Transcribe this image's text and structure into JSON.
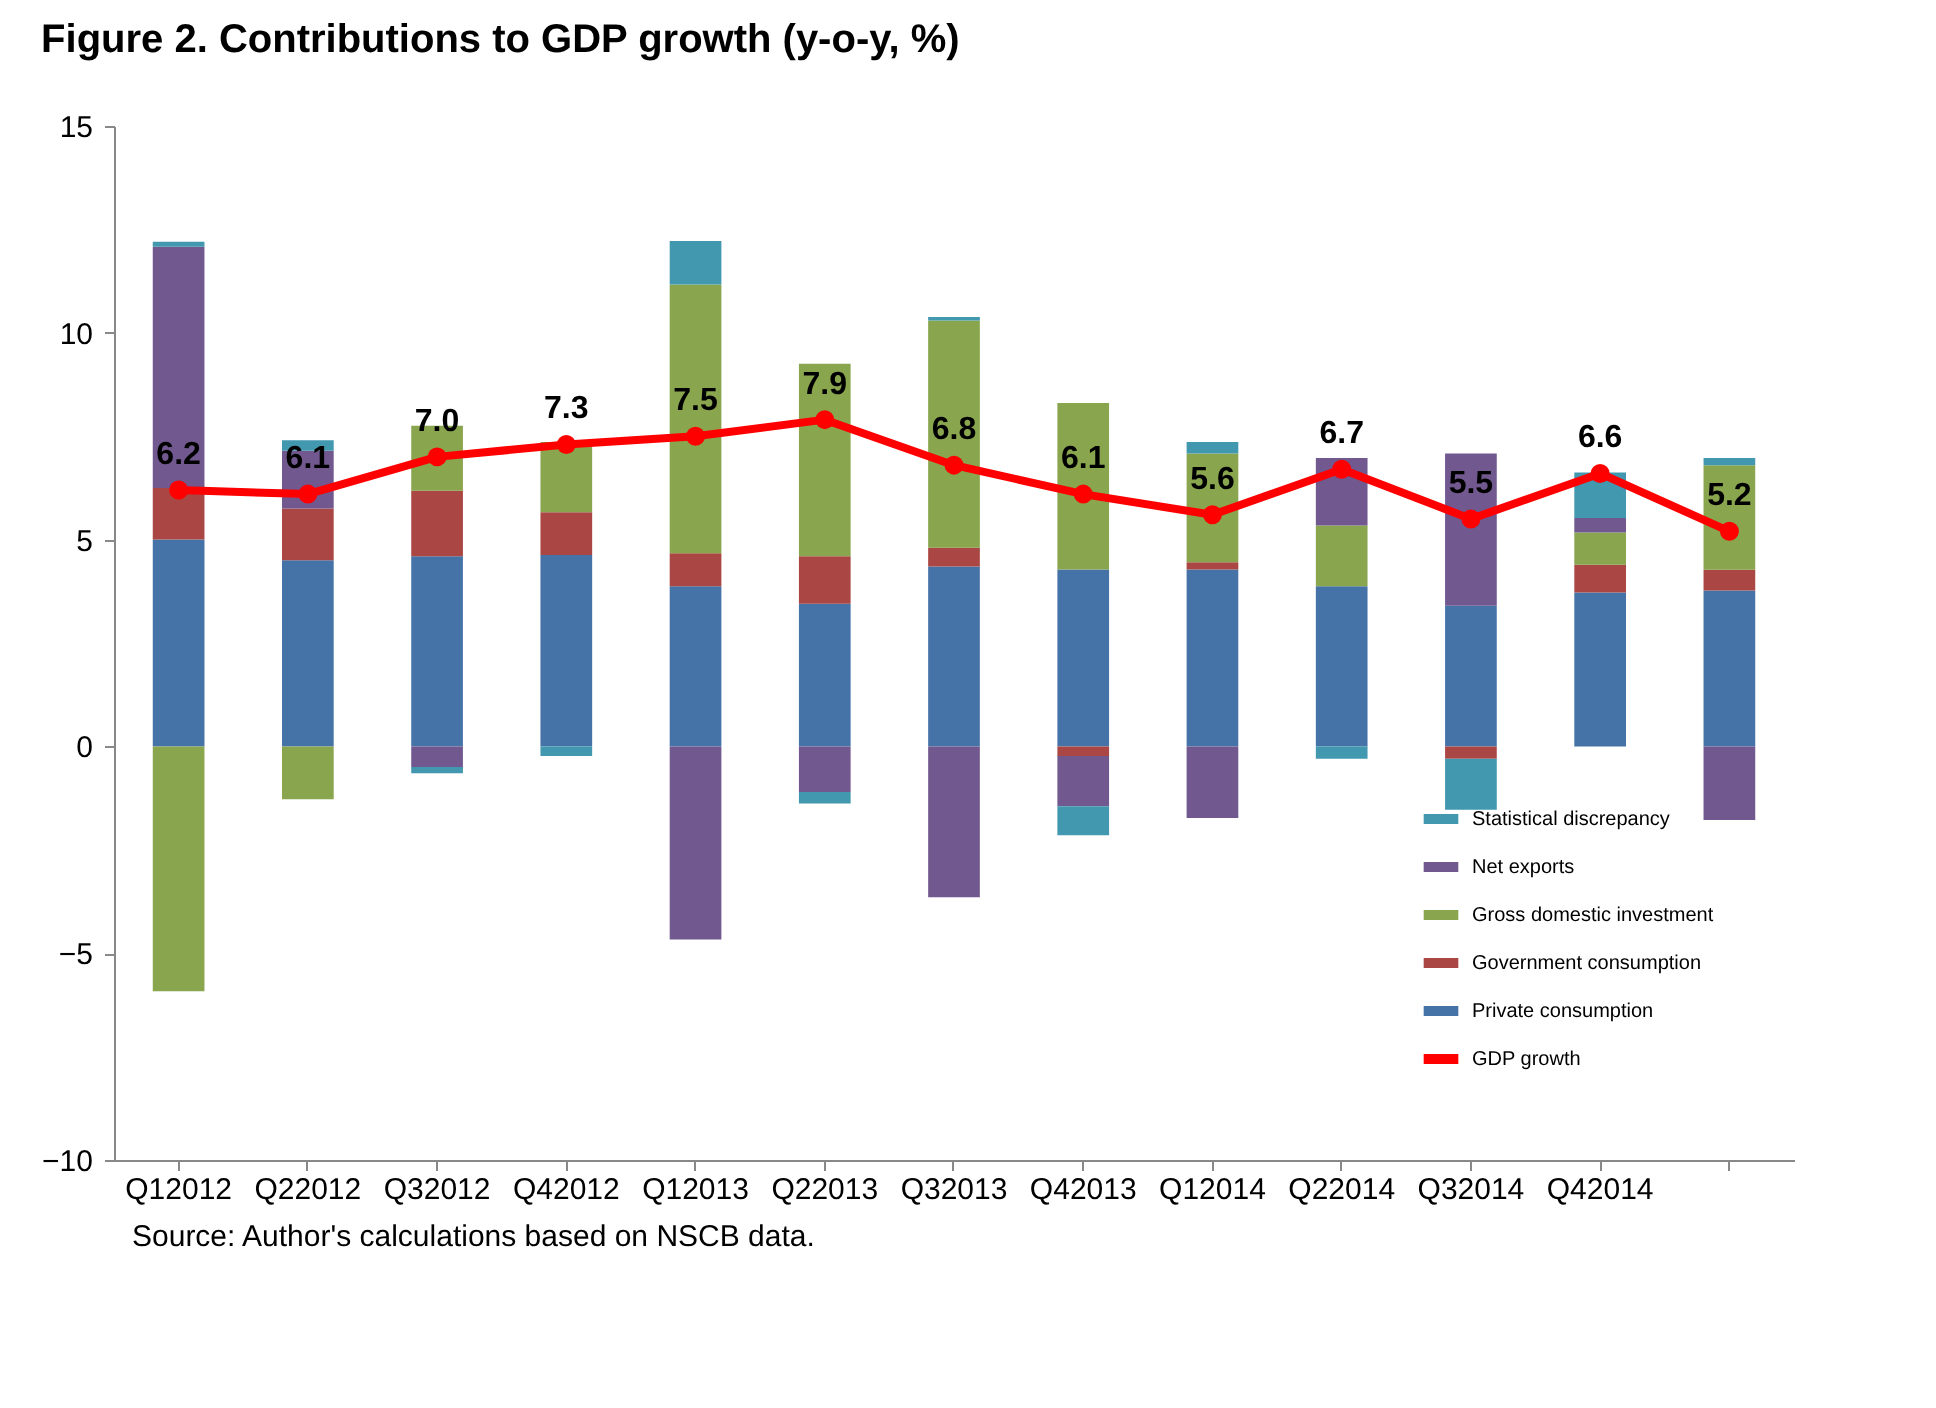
{
  "chart_data": {
    "type": "bar",
    "title": "Figure 2.  Contributions to GDP growth (y-o-y, %)",
    "annotations": [
      "Source: Author's calculations based on NSCB data."
    ],
    "categories": [
      "Q12012",
      "Q22012",
      "Q32012",
      "Q42012",
      "Q12013",
      "Q22013",
      "Q32013",
      "Q42013",
      "Q12014",
      "Q22014",
      "Q32014",
      "Q42014",
      null
    ],
    "stacked": true,
    "ylim": [
      -10,
      15
    ],
    "yticks": [
      -10,
      -5,
      0,
      5,
      10,
      15
    ],
    "legend": "bottom right",
    "marker": "circle",
    "series": [
      {
        "name": "Private consumption",
        "color": "#4573a7",
        "values": [
          5.0,
          4.5,
          4.6,
          4.63,
          3.87,
          3.45,
          4.35,
          4.28,
          4.28,
          3.87,
          3.4,
          3.72,
          3.77
        ]
      },
      {
        "name": "Government consumption",
        "color": "#aa4643",
        "values": [
          1.25,
          1.25,
          1.58,
          1.03,
          0.8,
          1.15,
          0.45,
          -0.23,
          0.17,
          null,
          -0.3,
          0.67,
          0.5
        ]
      },
      {
        "name": "Gross domestic investment",
        "color": "#89a54e",
        "values": [
          -5.92,
          -1.28,
          1.57,
          1.7,
          6.5,
          4.65,
          5.5,
          4.02,
          2.63,
          1.47,
          null,
          0.78,
          2.53
        ]
      },
      {
        "name": "Net exports",
        "color": "#71588f",
        "values": [
          5.83,
          1.4,
          -0.5,
          null,
          -4.67,
          -1.1,
          -3.65,
          -1.22,
          -1.73,
          1.63,
          3.68,
          0.35,
          -1.78
        ]
      },
      {
        "name": "Statistical discrepancy",
        "color": "#4198af",
        "values": [
          0.12,
          0.25,
          -0.15,
          -0.23,
          1.05,
          -0.28,
          0.08,
          -0.7,
          0.28,
          -0.3,
          -1.23,
          1.1,
          0.17
        ]
      },
      {
        "name": "GDP growth",
        "type": "line",
        "color": "#ff0000",
        "values": [
          6.2,
          6.1,
          7.0,
          7.3,
          7.5,
          7.9,
          6.8,
          6.1,
          5.6,
          6.7,
          5.5,
          6.6,
          5.2
        ],
        "value_labels": [
          "6.2",
          "6.1",
          "7.0",
          "7.3",
          "7.5",
          "7.9",
          "6.8",
          "6.1",
          "5.6",
          "6.7",
          "5.5",
          "6.6",
          "5.2"
        ]
      }
    ]
  }
}
